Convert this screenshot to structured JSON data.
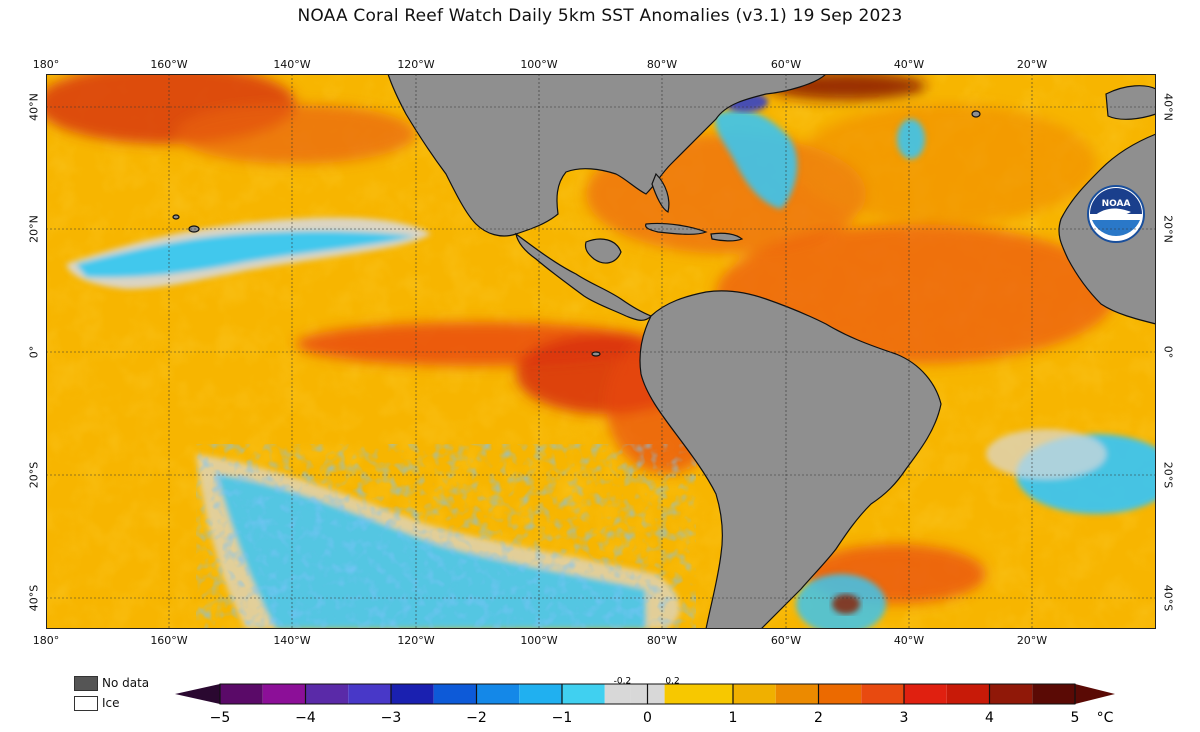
{
  "title": "NOAA Coral Reef Watch Daily 5km SST Anomalies  (v3.1)   19 Sep 2023",
  "axes": {
    "top_lon_labels": [
      "180°",
      "160°W",
      "140°W",
      "120°W",
      "100°W",
      "80°W",
      "60°W",
      "40°W",
      "20°W"
    ],
    "bottom_lon_labels": [
      "180°",
      "160°W",
      "140°W",
      "120°W",
      "100°W",
      "80°W",
      "60°W",
      "40°W",
      "20°W"
    ],
    "left_lat_labels": [
      "40°N",
      "20°N",
      "0°",
      "20°S",
      "40°S"
    ],
    "right_lat_labels": [
      "40°N",
      "20°N",
      "0°",
      "20°S",
      "40°S"
    ]
  },
  "legend": {
    "no_data_label": "No data",
    "ice_label": "Ice",
    "no_data_color": "#555555",
    "ice_color": "#ffffff"
  },
  "colorbar": {
    "min": -5,
    "max": 5,
    "ticks": [
      "−5",
      "−4",
      "−3",
      "−2",
      "−1",
      "0",
      "1",
      "2",
      "3",
      "4",
      "5"
    ],
    "small_ticks": [
      "-0.2",
      "0.2"
    ],
    "unit": "°C",
    "neutral_color": "#d8d8d8"
  },
  "colors": {
    "land": "#8f8f8f",
    "cool": "#33c8ef",
    "warm": "#f5b400",
    "hot": "#e03a10"
  }
}
